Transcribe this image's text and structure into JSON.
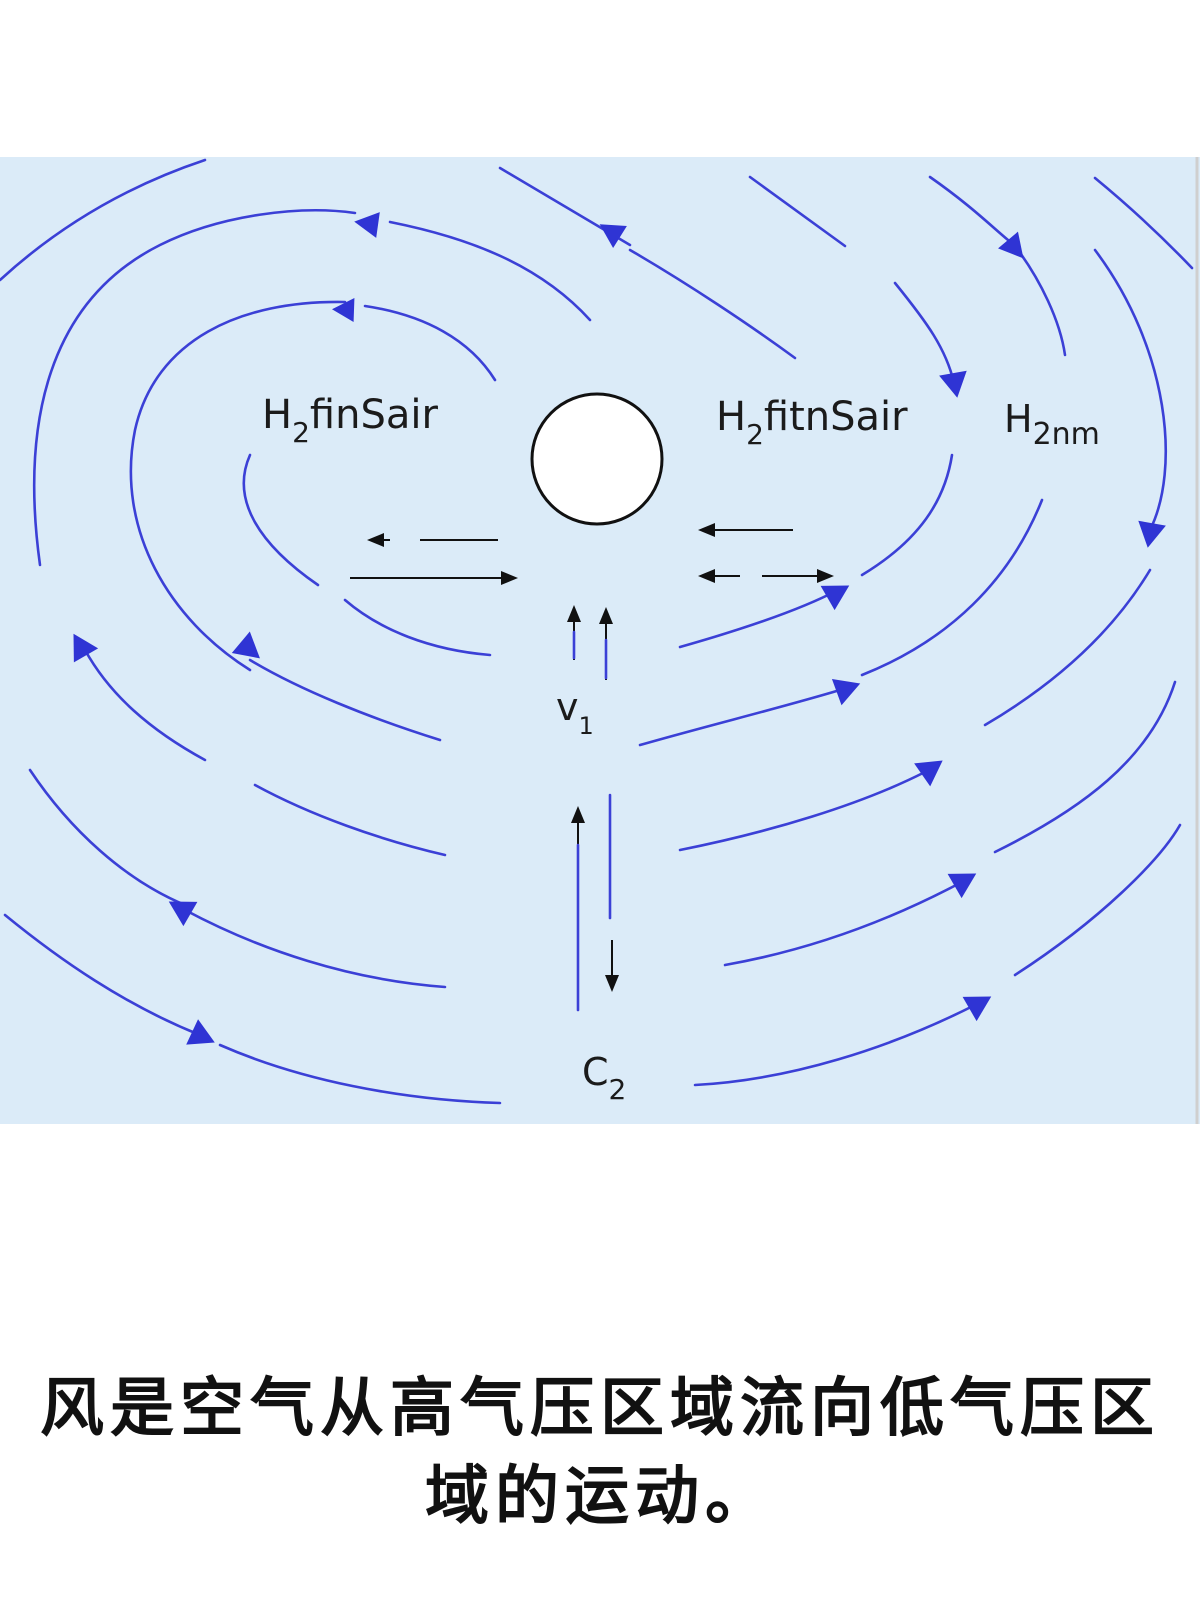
{
  "colors": {
    "panel_background": "#dbebf8",
    "flow_line": "#3b40d6",
    "flow_arrowhead": "#2f34d4",
    "inner_arrows": "#111111",
    "panel_border": "#cfcfcf"
  },
  "diagram": {
    "labels": {
      "left_region": {
        "main": "H",
        "sub": "2",
        "rest": "finSair"
      },
      "right_region": {
        "main": "H",
        "sub": "2",
        "rest": "fitnSair"
      },
      "far_right": {
        "main": "H",
        "sub": "2nm"
      },
      "velocity": {
        "main": "v",
        "sub": "1"
      },
      "bottom": {
        "main": "C",
        "sub": "2"
      }
    },
    "center_marker": "low-pressure-circle",
    "icons": [
      "arrowhead-icon",
      "black-arrow-icon"
    ]
  },
  "caption": {
    "line1": "风是空气从高气压区域流向低气压区",
    "line2": "域的运动。"
  }
}
